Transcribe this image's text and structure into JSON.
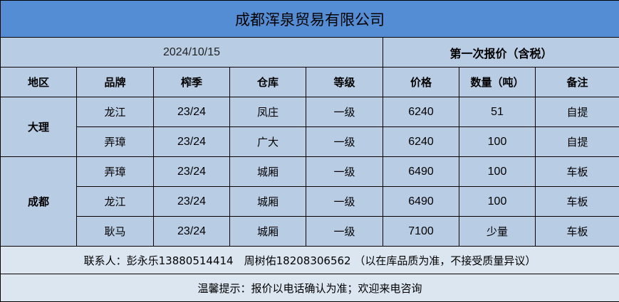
{
  "title": "成都浑泉贸易有限公司",
  "date": "2024/10/15",
  "quote_round": "第一次报价（含税）",
  "headers": [
    "地区",
    "品牌",
    "榨季",
    "仓库",
    "等级",
    "价格",
    "数量（吨）",
    "备注"
  ],
  "groups": [
    {
      "region": "大理",
      "rows": [
        [
          "龙江",
          "23/24",
          "凤庄",
          "一级",
          "6240",
          "51",
          "自提"
        ],
        [
          "弄璋",
          "23/24",
          "广大",
          "一级",
          "6240",
          "100",
          "自提"
        ]
      ]
    },
    {
      "region": "成都",
      "rows": [
        [
          "弄璋",
          "23/24",
          "城厢",
          "一级",
          "6490",
          "100",
          "车板"
        ],
        [
          "龙江",
          "23/24",
          "城厢",
          "一级",
          "6490",
          "100",
          "车板"
        ],
        [
          "耿马",
          "23/24",
          "城厢",
          "一级",
          "7100",
          "少量",
          "车板"
        ]
      ]
    }
  ],
  "contact": "联系人：彭永乐13880514414　周树佑18208306562 （以在库品质为准，不接受质量异议）",
  "tip": "温馨提示：报价以电话确认为准；欢迎来电咨询",
  "colors": {
    "title_bg": "#548dd4",
    "cell_bg": "#b8cce4",
    "footer_bg": "#dce6f1"
  }
}
